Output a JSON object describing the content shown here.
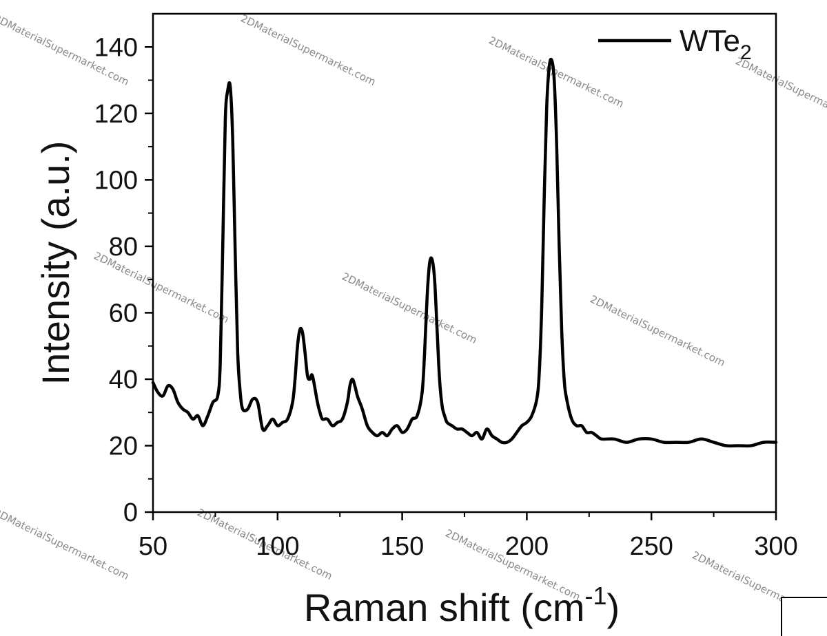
{
  "chart_data": {
    "type": "line",
    "title": "",
    "xlabel": {
      "main": "Raman shift (cm",
      "sup": "-1",
      "tail": ")"
    },
    "ylabel": "Intensity (a.u.)",
    "xlim": [
      50,
      300
    ],
    "ylim": [
      0,
      150
    ],
    "xticks": [
      50,
      100,
      150,
      200,
      250,
      300
    ],
    "yticks": [
      0,
      20,
      40,
      60,
      80,
      100,
      120,
      140
    ],
    "grid": false,
    "legend_position": "top-right",
    "series": [
      {
        "name": {
          "main": "WTe",
          "sub": "2"
        },
        "color": "#000000",
        "x": [
          50,
          52,
          54,
          56,
          58,
          60,
          62,
          64,
          66,
          68,
          70,
          72,
          74,
          76,
          77,
          78,
          79,
          80,
          81,
          82,
          83,
          84,
          85,
          86,
          88,
          90,
          92,
          94,
          96,
          98,
          100,
          102,
          104,
          106,
          107,
          108,
          109,
          110,
          111,
          112,
          113,
          114,
          116,
          117,
          118,
          120,
          122,
          124,
          126,
          128,
          129,
          130,
          131,
          132,
          133,
          134,
          136,
          138,
          140,
          142,
          144,
          146,
          148,
          150,
          152,
          154,
          156,
          158,
          159,
          160,
          161,
          162,
          163,
          164,
          165,
          166,
          167,
          168,
          170,
          172,
          174,
          176,
          178,
          180,
          182,
          184,
          186,
          188,
          190,
          192,
          194,
          196,
          198,
          200,
          202,
          204,
          205,
          206,
          207,
          208,
          209,
          210,
          211,
          212,
          213,
          214,
          215,
          216,
          218,
          220,
          222,
          224,
          226,
          228,
          230,
          235,
          240,
          245,
          250,
          255,
          260,
          265,
          270,
          275,
          280,
          285,
          290,
          295,
          300
        ],
        "y": [
          39,
          36,
          35,
          38,
          37,
          33,
          31,
          30,
          28,
          29,
          26,
          29,
          33,
          35,
          45,
          80,
          118,
          127,
          128,
          112,
          78,
          48,
          36,
          31,
          31,
          34,
          33,
          25,
          26,
          28,
          26,
          27,
          28,
          33,
          40,
          50,
          55,
          54,
          48,
          41,
          40,
          41,
          33,
          30,
          28,
          28,
          26,
          27,
          28,
          33,
          38,
          40,
          38,
          35,
          33,
          31,
          26,
          24,
          23,
          24,
          23,
          25,
          26,
          24,
          25,
          28,
          29,
          36,
          48,
          65,
          75,
          76,
          70,
          55,
          40,
          32,
          29,
          27,
          26,
          25,
          25,
          24,
          23,
          24,
          22,
          25,
          23,
          22,
          21,
          21,
          22,
          24,
          26,
          27,
          29,
          34,
          42,
          62,
          95,
          122,
          134,
          136,
          130,
          110,
          80,
          55,
          40,
          34,
          28,
          26,
          26,
          24,
          24,
          23,
          22,
          22,
          21,
          22,
          22,
          21,
          21,
          21,
          22,
          21,
          20,
          20,
          20,
          21,
          21
        ]
      }
    ],
    "annotations": [
      "2DMaterialSupermarket.com"
    ]
  }
}
